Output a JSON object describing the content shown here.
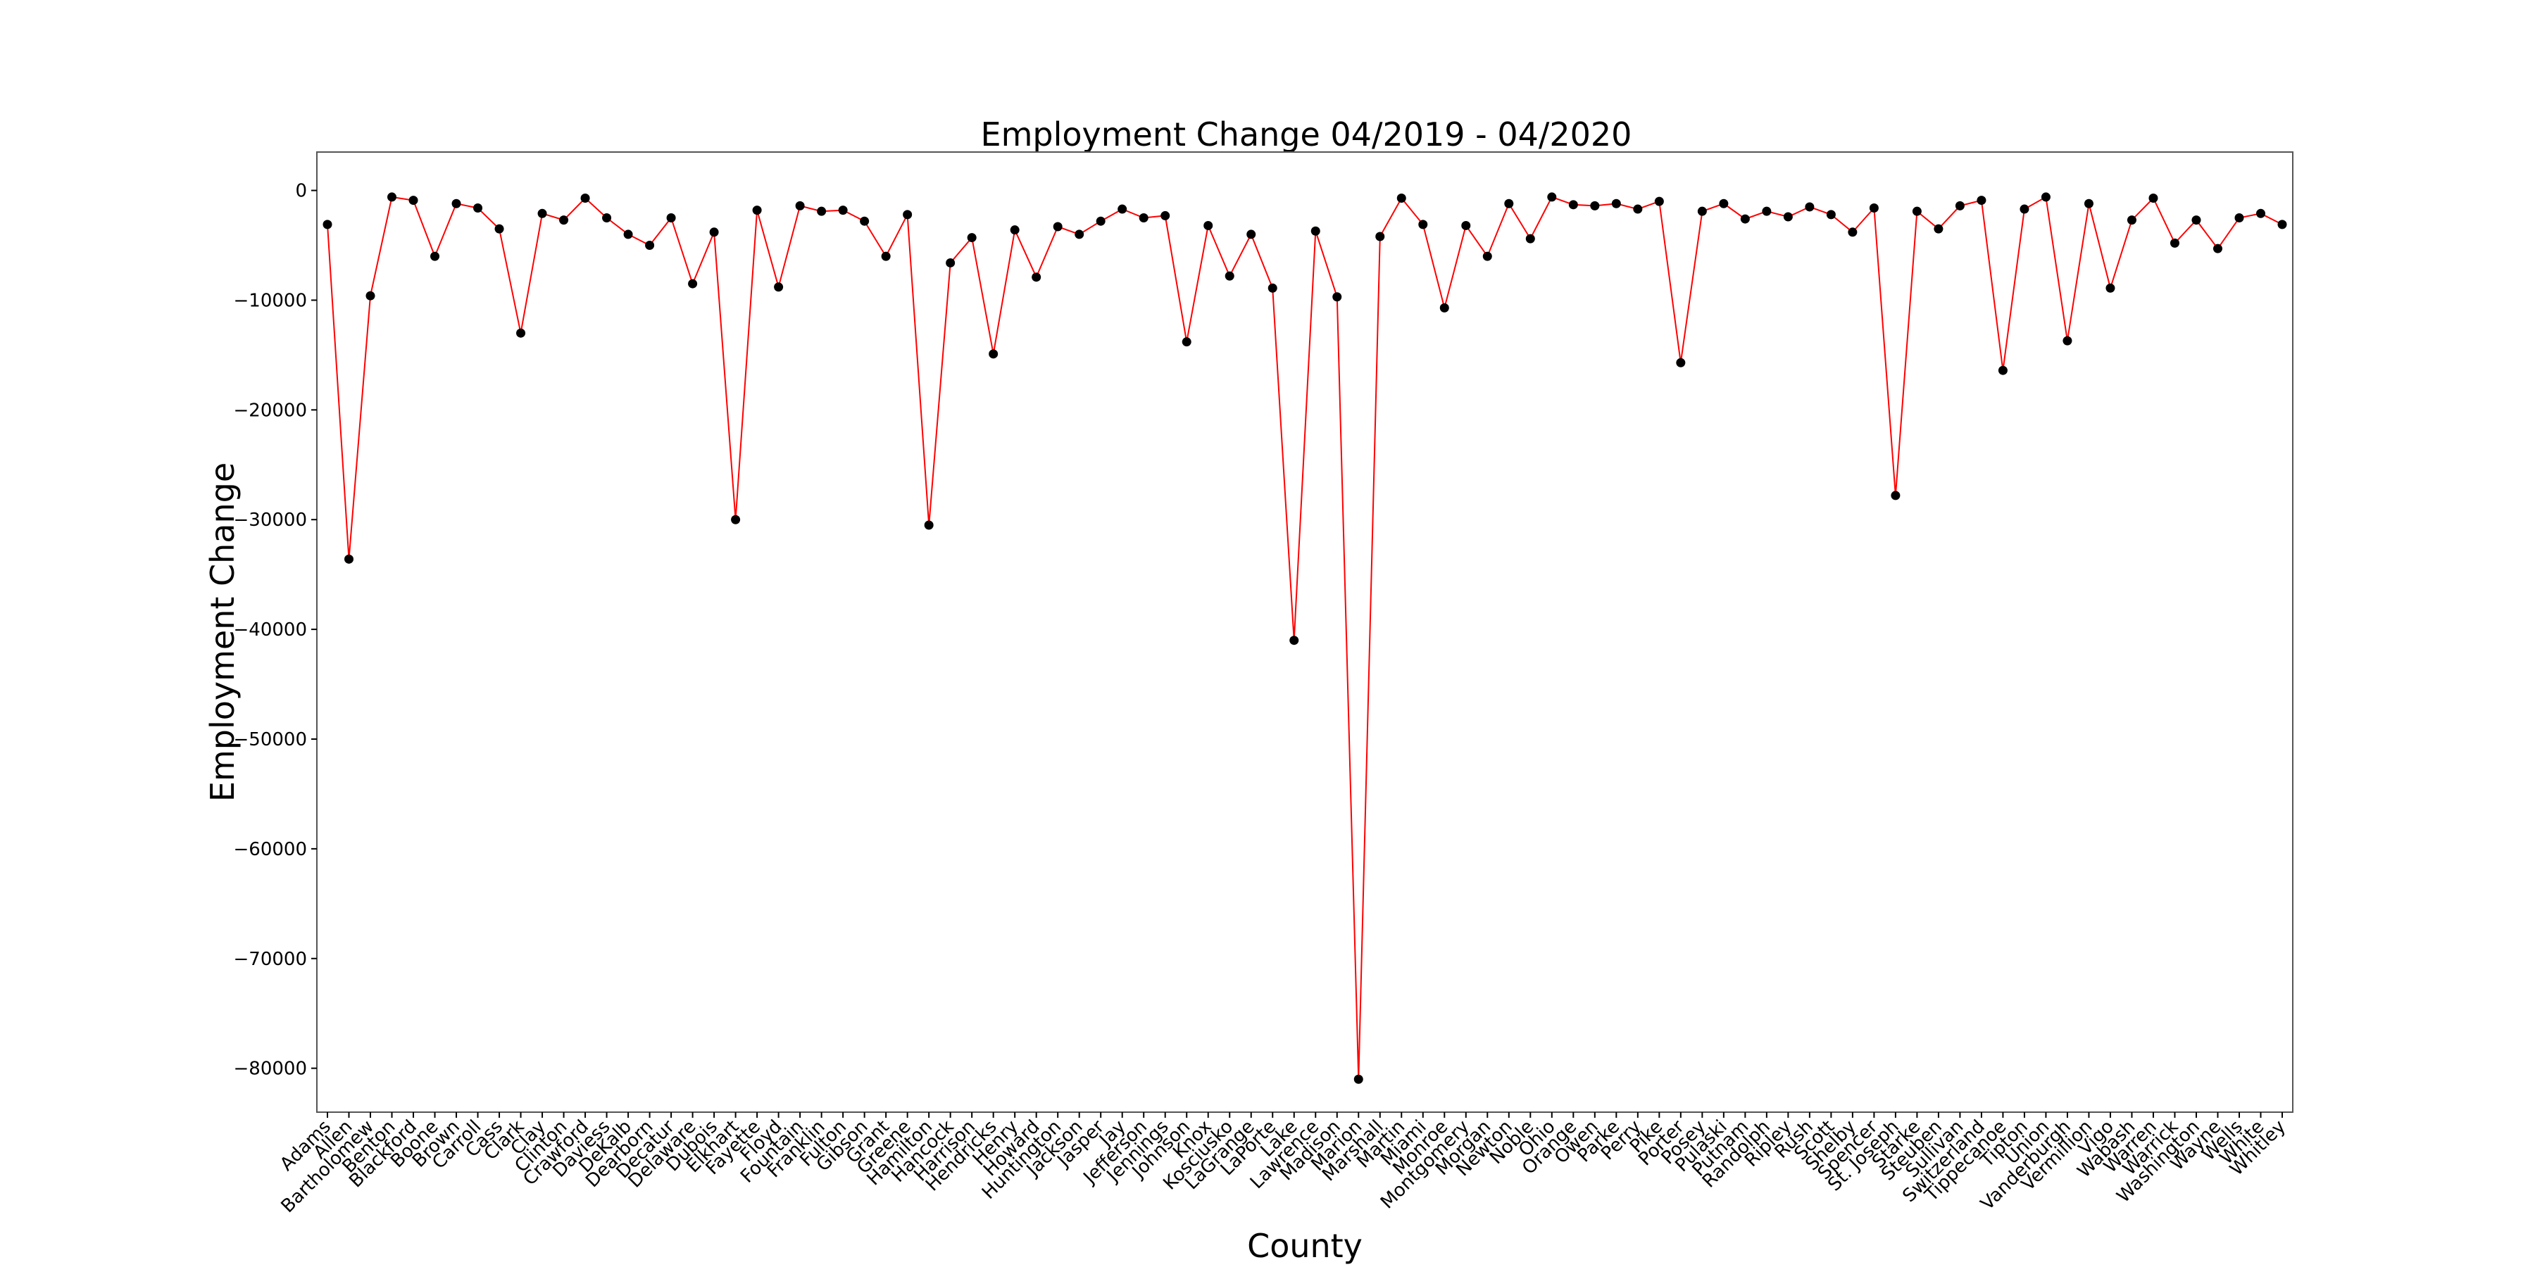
{
  "chart_data": {
    "type": "line",
    "title": "Employment Change 04/2019 - 04/2020",
    "xlabel": "County",
    "ylabel": "Employment Change",
    "ylim": [
      -84000,
      3500
    ],
    "yticks": [
      0,
      -10000,
      -20000,
      -30000,
      -40000,
      -50000,
      -60000,
      -70000,
      -80000
    ],
    "grid": false,
    "legend": "none",
    "line_color": "#ff0000",
    "marker_color": "#000000",
    "categories": [
      "Adams",
      "Allen",
      "Bartholomew",
      "Benton",
      "Blackford",
      "Boone",
      "Brown",
      "Carroll",
      "Cass",
      "Clark",
      "Clay",
      "Clinton",
      "Crawford",
      "Daviess",
      "DeKalb",
      "Dearborn",
      "Decatur",
      "Delaware",
      "Dubois",
      "Elkhart",
      "Fayette",
      "Floyd",
      "Fountain",
      "Franklin",
      "Fulton",
      "Gibson",
      "Grant",
      "Greene",
      "Hamilton",
      "Hancock",
      "Harrison",
      "Hendricks",
      "Henry",
      "Howard",
      "Huntington",
      "Jackson",
      "Jasper",
      "Jay",
      "Jefferson",
      "Jennings",
      "Johnson",
      "Knox",
      "Kosciusko",
      "LaGrange",
      "LaPorte",
      "Lake",
      "Lawrence",
      "Madison",
      "Marion",
      "Marshall",
      "Martin",
      "Miami",
      "Monroe",
      "Montgomery",
      "Morgan",
      "Newton",
      "Noble",
      "Ohio",
      "Orange",
      "Owen",
      "Parke",
      "Perry",
      "Pike",
      "Porter",
      "Posey",
      "Pulaski",
      "Putnam",
      "Randolph",
      "Ripley",
      "Rush",
      "Scott",
      "Shelby",
      "Spencer",
      "St. Joseph",
      "Starke",
      "Steuben",
      "Sullivan",
      "Switzerland",
      "Tippecanoe",
      "Tipton",
      "Union",
      "Vanderburgh",
      "Vermillion",
      "Vigo",
      "Wabash",
      "Warren",
      "Warrick",
      "Washington",
      "Wayne",
      "Wells",
      "White",
      "Whitley"
    ],
    "series": [
      {
        "values": [
          -3100,
          -33600,
          -9600,
          -600,
          -900,
          -6000,
          -1200,
          -1600,
          -3500,
          -13000,
          -2100,
          -2700,
          -700,
          -2500,
          -4000,
          -5000,
          -2500,
          -8500,
          -3800,
          -30000,
          -1800,
          -8800,
          -1400,
          -1900,
          -1800,
          -2800,
          -6000,
          -2200,
          -30500,
          -6600,
          -4300,
          -14900,
          -3600,
          -7900,
          -3300,
          -4000,
          -2800,
          -1700,
          -2500,
          -2300,
          -13800,
          -3200,
          -7800,
          -4000,
          -8900,
          -41000,
          -3700,
          -9700,
          -81000,
          -4200,
          -700,
          -3100,
          -10700,
          -3200,
          -6000,
          -1200,
          -4400,
          -600,
          -1300,
          -1400,
          -1200,
          -1700,
          -1000,
          -15700,
          -1900,
          -1200,
          -2600,
          -1900,
          -2400,
          -1500,
          -2200,
          -3800,
          -1600,
          -27800,
          -1900,
          -3500,
          -1400,
          -900,
          -16400,
          -1700,
          -600,
          -13700,
          -1200,
          -8900,
          -2700,
          -700,
          -4800,
          -2700,
          -5300,
          -2500,
          -2100,
          -3100
        ]
      }
    ]
  }
}
